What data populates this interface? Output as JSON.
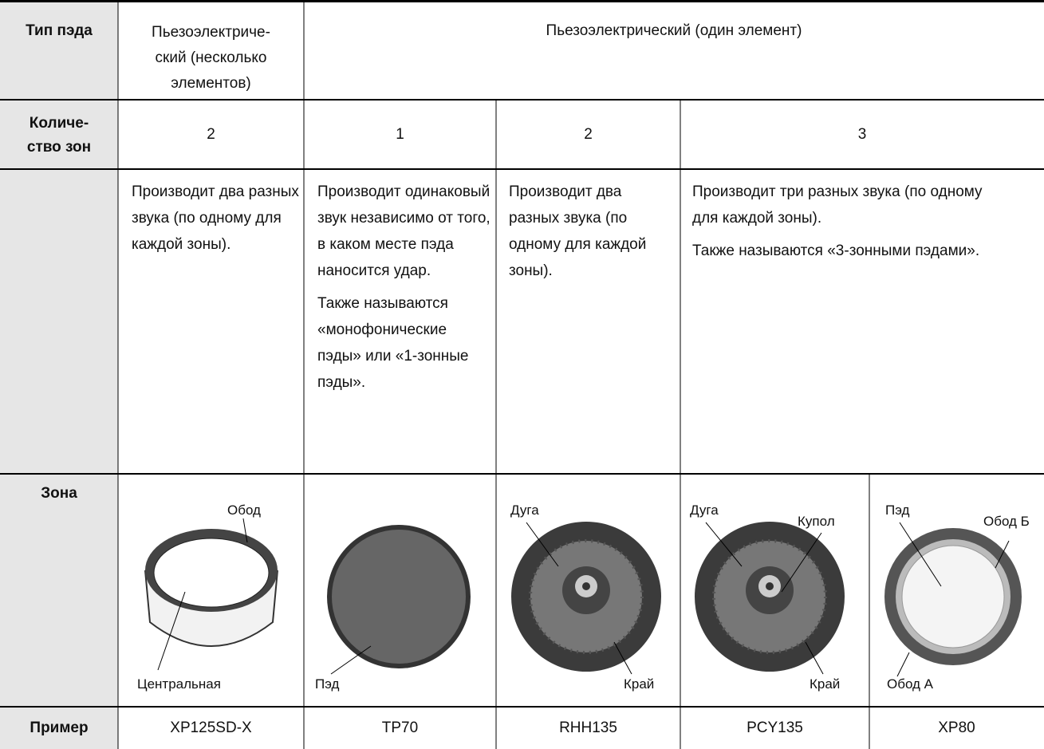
{
  "table": {
    "pad_type": {
      "label": "Тип пэда",
      "multi": [
        "Пьезоэлектриче-",
        "ский (несколько",
        "элементов)"
      ],
      "single": "Пьезоэлектрический (один элемент)"
    },
    "zone_count": {
      "label": [
        "Количе-",
        "ство зон"
      ],
      "values": [
        "2",
        "1",
        "2",
        "3"
      ]
    },
    "description": [
      [
        "Производит два разных звука (по одному для каждой зоны)."
      ],
      [
        "Производит одинаковый звук независимо от того, в каком месте пэда наносится удар.",
        "Также называются «монофонические пэды» или «1-зонные пэды»."
      ],
      [
        "Производит два разных звука (по одному для каждой зоны)."
      ],
      [
        "Производит три разных звука (по одному для каждой зоны).",
        "Также называются «3-зонными пэдами»."
      ]
    ],
    "zone": {
      "label": "Зона",
      "pads": [
        {
          "labels": [
            "Обод",
            "Центральная"
          ]
        },
        {
          "labels": [
            "Пэд"
          ]
        },
        {
          "labels": [
            "Дуга",
            "Край"
          ]
        },
        {
          "labels": [
            "Дуга",
            "Купол",
            "Край"
          ]
        },
        {
          "labels": [
            "Пэд",
            "Обод Б",
            "Обод А"
          ]
        }
      ]
    },
    "example": {
      "label": "Пример",
      "values": [
        "XP125SD-X",
        "TP70",
        "RHH135",
        "PCY135",
        "XP80"
      ]
    }
  }
}
